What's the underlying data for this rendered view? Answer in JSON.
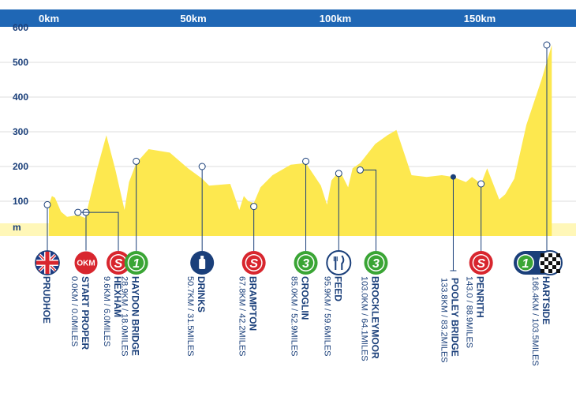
{
  "colors": {
    "header_bar": "#1f67b5",
    "profile_fill": "#fde84f",
    "baseline_strip": "#fff7b8",
    "text": "#1a3f7a",
    "sprint_red": "#d8262e",
    "climb_green": "#3aa535",
    "icon_blue": "#1a3f7a"
  },
  "chart_data": {
    "type": "area",
    "x_axis": {
      "unit": "km",
      "ticks": [
        "0km",
        "50km",
        "100km",
        "150km"
      ],
      "range": [
        0,
        171
      ]
    },
    "y_axis": {
      "unit": "m",
      "ticks": [
        "600",
        "500",
        "400",
        "300",
        "200",
        "100",
        "m"
      ],
      "range": [
        0,
        650
      ]
    },
    "grid": true,
    "profile": {
      "km": [
        0,
        1,
        2,
        4,
        6,
        9.6,
        12,
        16,
        19,
        22,
        25,
        26.5,
        28.9,
        33,
        40,
        46,
        50.7,
        53,
        60,
        63,
        64.5,
        66,
        67.8,
        70,
        74,
        80,
        85,
        90,
        92,
        93.5,
        95.9,
        97,
        99,
        100.5,
        103,
        108,
        112,
        115,
        120,
        125,
        130,
        133.8,
        138,
        140,
        143,
        145,
        149,
        151,
        154,
        158,
        163,
        166.4
      ],
      "elevation": [
        90,
        115,
        110,
        70,
        55,
        60,
        52,
        195,
        290,
        190,
        75,
        155,
        210,
        250,
        240,
        195,
        165,
        145,
        150,
        75,
        115,
        100,
        95,
        140,
        175,
        205,
        210,
        145,
        90,
        160,
        185,
        175,
        140,
        195,
        210,
        265,
        290,
        305,
        175,
        170,
        175,
        170,
        155,
        170,
        150,
        195,
        105,
        120,
        165,
        320,
        450,
        550
      ]
    },
    "waypoints": [
      {
        "name": "PRUDHOE",
        "distance": "",
        "km": 0,
        "elev": 90,
        "icon": "uk-flag-icon"
      },
      {
        "name": "START PROPER",
        "distance": "0.0KM / 0.0MILES",
        "km": 4,
        "elev": 68,
        "icon": "start-okm-icon",
        "icon_text": "OKM"
      },
      {
        "name": "HEXHAM",
        "distance": "9.6KM / 6.0MILES",
        "km": 9.6,
        "elev": 68,
        "icon": "sprint-icon",
        "icon_text": "S"
      },
      {
        "name": "HAYDON BRIDGE",
        "distance": "28.9KM / 18.0MILES",
        "km": 28.9,
        "elev": 215,
        "icon": "climb-cat1-icon",
        "icon_text": "1"
      },
      {
        "name": "DRINKS",
        "distance": "50.7KM / 31.5MILES",
        "km": 50.7,
        "elev": 200,
        "icon": "drinks-icon"
      },
      {
        "name": "BRAMPTON",
        "distance": "67.8KM / 42.2MILES",
        "km": 67.8,
        "elev": 85,
        "icon": "sprint-icon",
        "icon_text": "S"
      },
      {
        "name": "CROGLIN",
        "distance": "85.0KM / 52.9MILES",
        "km": 85.0,
        "elev": 215,
        "icon": "climb-cat3-icon",
        "icon_text": "3"
      },
      {
        "name": "FEED",
        "distance": "95.9KM / 59.6MILES",
        "km": 95.9,
        "elev": 180,
        "icon": "feed-icon"
      },
      {
        "name": "BROCKLEYMOOR",
        "distance": "103.0KM / 64.1MILES",
        "km": 103.0,
        "elev": 190,
        "icon": "climb-cat3-icon",
        "icon_text": "3"
      },
      {
        "name": "POOLEY BRIDGE",
        "distance": "133.8KM / 83.2MILES",
        "km": 133.8,
        "elev": 170,
        "icon": "none"
      },
      {
        "name": "PENRITH",
        "distance": "143.0 / 88.9MILES",
        "km": 143.0,
        "elev": 150,
        "icon": "sprint-icon",
        "icon_text": "S"
      },
      {
        "name": "HARTSIDE",
        "distance": "166.4KM / 103.5MILES",
        "km": 166.4,
        "elev": 550,
        "icon": "climb-cat1-finish-icon",
        "icon_text": "1"
      }
    ]
  }
}
